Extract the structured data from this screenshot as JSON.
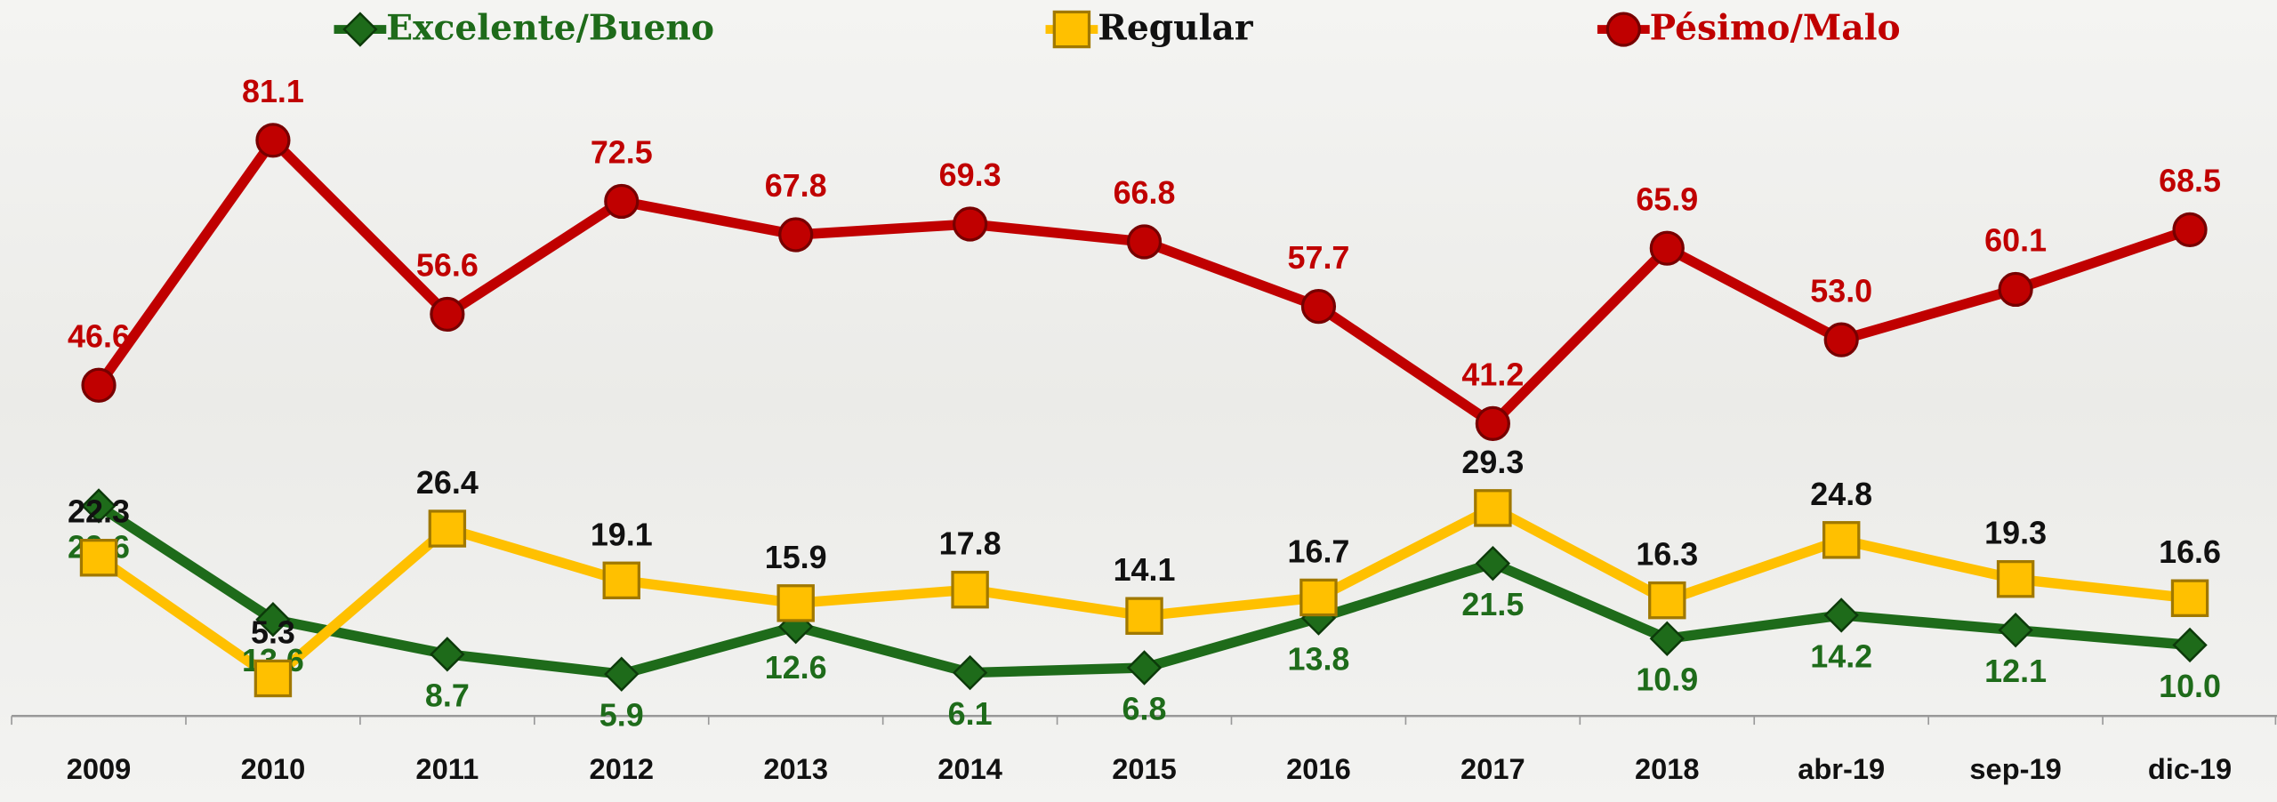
{
  "chart_data": {
    "type": "line",
    "categories": [
      "2009",
      "2010",
      "2011",
      "2012",
      "2013",
      "2014",
      "2015",
      "2016",
      "2017",
      "2018",
      "abr-19",
      "sep-19",
      "dic-19"
    ],
    "series": [
      {
        "name": "Excelente/Bueno",
        "color": "#1e6b1a",
        "marker": "diamond",
        "values": [
          29.6,
          13.6,
          8.7,
          5.9,
          12.6,
          6.1,
          6.8,
          13.8,
          21.5,
          10.9,
          14.2,
          12.1,
          10.0
        ],
        "value_labels": [
          "29.6",
          "13.6",
          "8.7",
          "5.9",
          "12.6",
          "6.1",
          "6.8",
          "13.8",
          "21.5",
          "10.9",
          "14.2",
          "12.1",
          "10.0"
        ]
      },
      {
        "name": "Regular",
        "color": "#ffc000",
        "marker": "square",
        "values": [
          22.3,
          5.3,
          26.4,
          19.1,
          15.9,
          17.8,
          14.1,
          16.7,
          29.3,
          16.3,
          24.8,
          19.3,
          16.6
        ],
        "value_labels": [
          "22.3",
          "5.3",
          "26.4",
          "19.1",
          "15.9",
          "17.8",
          "14.1",
          "16.7",
          "29.3",
          "16.3",
          "24.8",
          "19.3",
          "16.6"
        ]
      },
      {
        "name": "Pésimo/Malo",
        "color": "#c00000",
        "marker": "circle",
        "values": [
          46.6,
          81.1,
          56.6,
          72.5,
          67.8,
          69.3,
          66.8,
          57.7,
          41.2,
          65.9,
          53.0,
          60.1,
          68.5
        ],
        "value_labels": [
          "46.6",
          "81.1",
          "56.6",
          "72.5",
          "67.8",
          "69.3",
          "66.8",
          "57.7",
          "41.2",
          "65.9",
          "53.0",
          "60.1",
          "68.5"
        ]
      }
    ],
    "ylim": [
      0,
      100
    ],
    "legend": "top"
  }
}
